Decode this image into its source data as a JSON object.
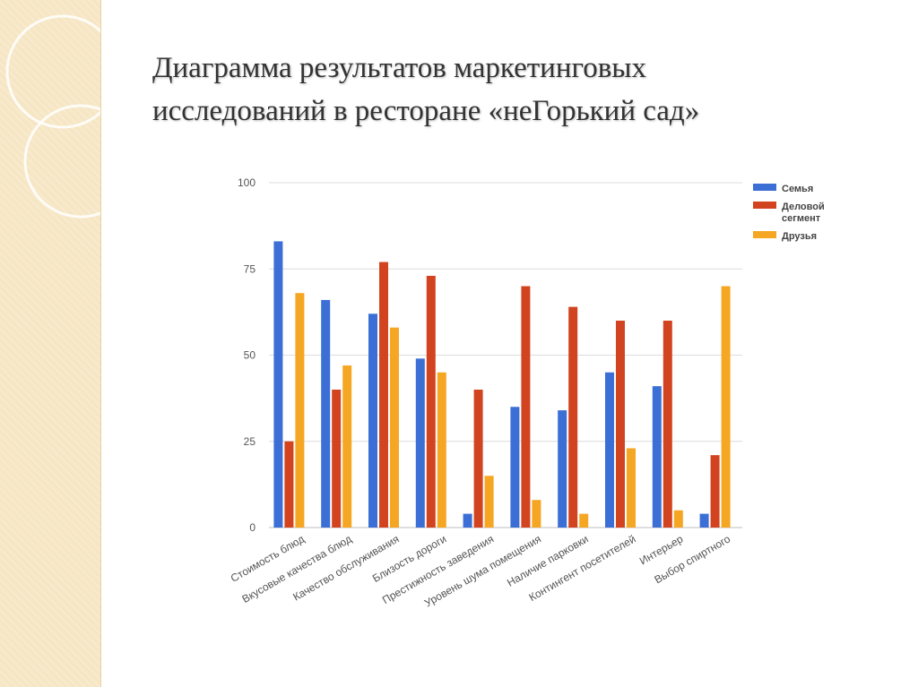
{
  "slide": {
    "title_line1": "Диаграмма результатов маркетинговых",
    "title_line2": "исследований в ресторане «неГорький сад»"
  },
  "colors": {
    "semya": "#3b6fd6",
    "delovoy": "#d2431f",
    "druzya": "#f5a623",
    "grid": "#dcdcdc",
    "axis_text": "#555555",
    "side_panel": "#f6e6c4"
  },
  "chart_data": {
    "type": "bar",
    "categories": [
      "Стоимость блюд",
      "Вкусовые качества блюд",
      "Качество обслуживания",
      "Близость дороги",
      "Престижность заведения",
      "Уровень шума помещения",
      "Наличие парковки",
      "Контингент посетителей",
      "Интерьер",
      "Выбор спиртного"
    ],
    "series": [
      {
        "name": "Семья",
        "color": "#3b6fd6",
        "values": [
          83,
          66,
          62,
          49,
          4,
          35,
          34,
          45,
          41,
          4
        ]
      },
      {
        "name": "Деловой сегмент",
        "color": "#d2431f",
        "values": [
          25,
          40,
          77,
          73,
          40,
          70,
          64,
          60,
          60,
          21
        ]
      },
      {
        "name": "Друзья",
        "color": "#f5a623",
        "values": [
          68,
          47,
          58,
          45,
          15,
          8,
          4,
          23,
          5,
          70
        ]
      }
    ],
    "yticks": [
      0,
      25,
      50,
      75,
      100
    ],
    "ylim": [
      0,
      100
    ],
    "grid": true,
    "legend_position": "top-right"
  }
}
